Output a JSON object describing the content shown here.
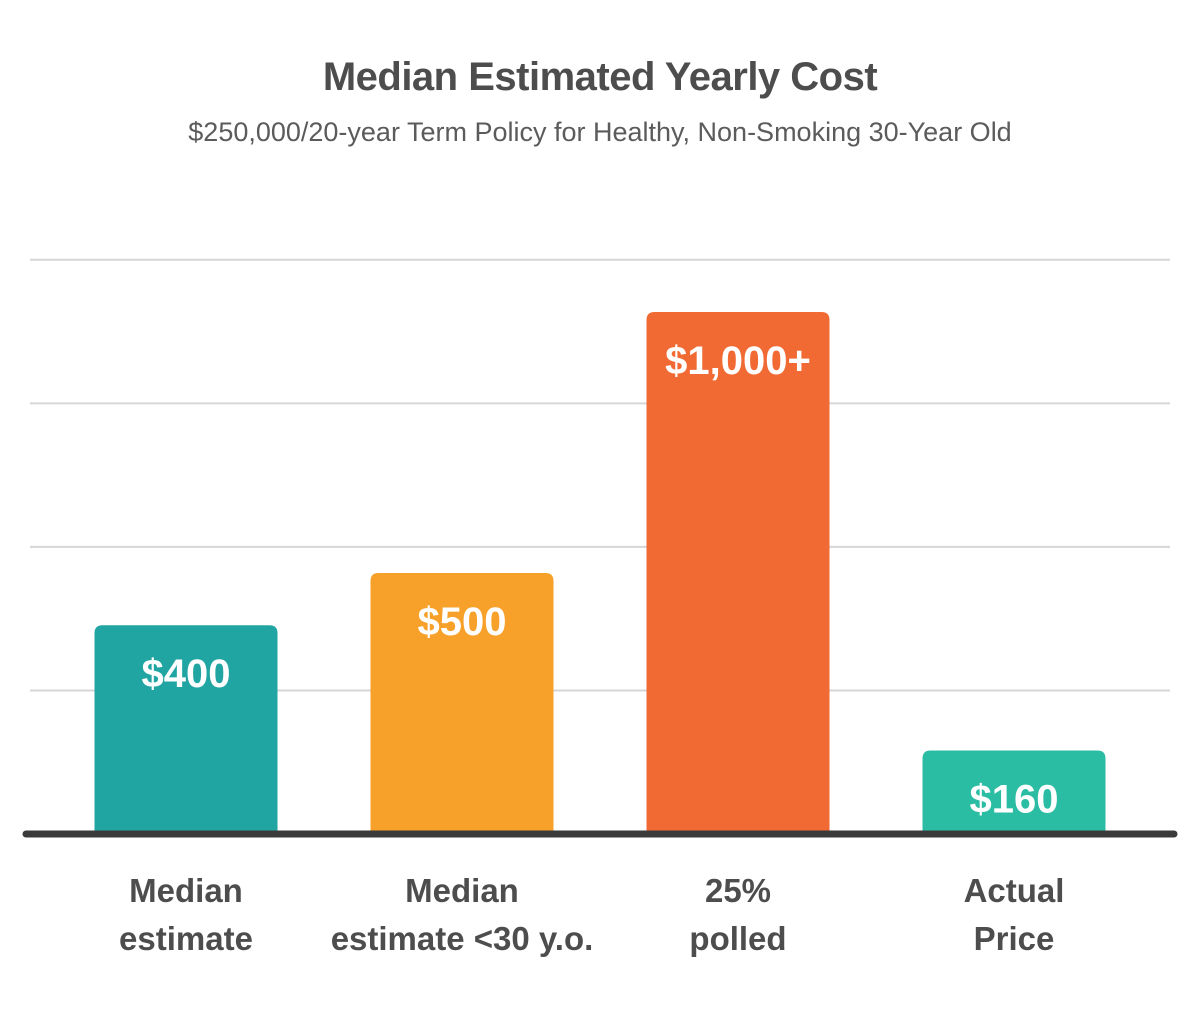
{
  "chart_data": {
    "type": "bar",
    "title": "Median Estimated Yearly Cost",
    "subtitle": "$250,000/20-year Term Policy for Healthy, Non-Smoking 30-Year Old",
    "categories": [
      [
        "Median",
        "estimate"
      ],
      [
        "Median",
        "estimate <30 y.o."
      ],
      [
        "25%",
        "polled"
      ],
      [
        "Actual",
        "Price"
      ]
    ],
    "values": [
      400,
      500,
      1000,
      160
    ],
    "data_labels": [
      "$400",
      "$500",
      "$1,000+",
      "$160"
    ],
    "colors": [
      "#20a5a3",
      "#f7a02a",
      "#f26a33",
      "#2bbda3"
    ],
    "ylim": [
      0,
      1240
    ],
    "grid_values": [
      275,
      550,
      825,
      1100
    ],
    "grid": true,
    "xlabel": "",
    "ylabel": ""
  }
}
